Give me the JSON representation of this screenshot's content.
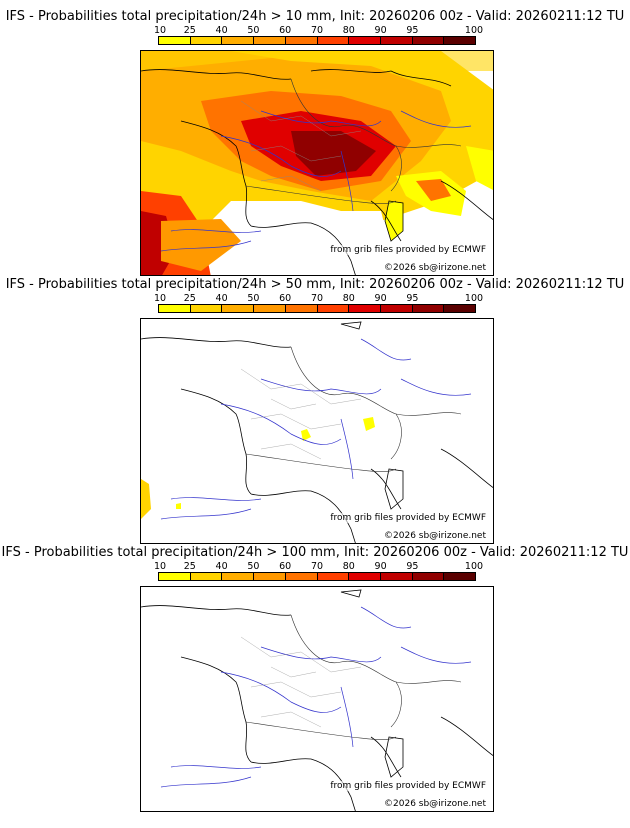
{
  "colorbar": {
    "ticks": [
      "10",
      "25",
      "40",
      "50",
      "60",
      "70",
      "80",
      "90",
      "95",
      "100"
    ],
    "colors": [
      "#ffff00",
      "#ffd400",
      "#ffae00",
      "#ff9900",
      "#ff7300",
      "#ff4000",
      "#e00000",
      "#c00000",
      "#900000",
      "#5a0000"
    ]
  },
  "panels": [
    {
      "title": "IFS - Probabilities total precipitation/24h > 10 mm, Init: 20260206 00z - Valid: 20260211:12 TU",
      "credit": "from grib files provided by ECMWF",
      "copyright": "©2026 sb@irizone.net",
      "threshold_mm": 10
    },
    {
      "title": "IFS - Probabilities total precipitation/24h > 50 mm, Init: 20260206 00z - Valid: 20260211:12 TU",
      "credit": "from grib files provided by ECMWF",
      "copyright": "©2026 sb@irizone.net",
      "threshold_mm": 50
    },
    {
      "title": "IFS - Probabilities total precipitation/24h > 100 mm, Init: 20260206 00z - Valid: 20260211:12 TU",
      "credit": "from grib files provided by ECMWF",
      "copyright": "©2026 sb@irizone.net",
      "threshold_mm": 100
    }
  ]
}
